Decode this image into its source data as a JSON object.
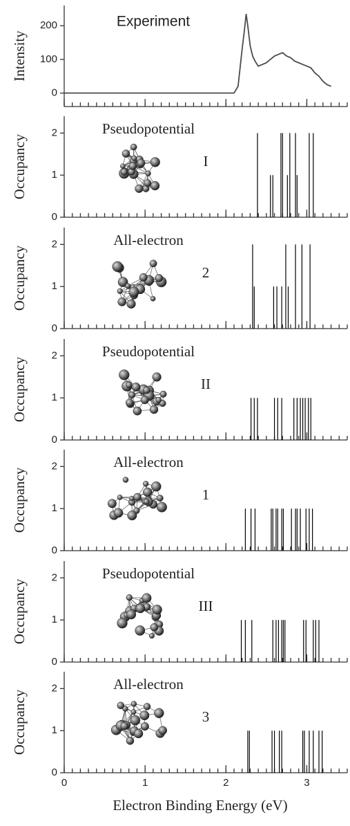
{
  "chart_data": [
    {
      "type": "line",
      "title": "Experiment",
      "ylabel": "Intensity",
      "color": "#4a4a4a",
      "x": [
        0,
        2.1,
        2.15,
        2.2,
        2.23,
        2.25,
        2.27,
        2.3,
        2.33,
        2.36,
        2.4,
        2.45,
        2.5,
        2.55,
        2.6,
        2.65,
        2.7,
        2.75,
        2.8,
        2.85,
        2.9,
        2.95,
        3.0,
        3.05,
        3.1,
        3.15,
        3.2,
        3.25,
        3.3
      ],
      "values": [
        0,
        0,
        20,
        130,
        190,
        235,
        200,
        140,
        110,
        95,
        80,
        85,
        90,
        100,
        110,
        115,
        120,
        110,
        105,
        95,
        90,
        85,
        80,
        75,
        60,
        50,
        35,
        25,
        20
      ],
      "xlim": [
        0,
        3.5
      ],
      "ylim": [
        -40,
        260
      ],
      "yticks": [
        0,
        100,
        200
      ],
      "xticks": [
        0,
        1,
        2,
        3
      ],
      "minor_xtick_step": 0.1
    },
    {
      "type": "stick",
      "title": "Pseudopotential",
      "label": "I",
      "ylabel": "Occupancy",
      "color": "#000000",
      "x": [
        2.39,
        2.55,
        2.58,
        2.68,
        2.7,
        2.76,
        2.79,
        2.86,
        2.88,
        3.03,
        3.08
      ],
      "values": [
        2,
        1,
        1,
        2,
        2,
        1,
        2,
        2,
        1,
        2,
        2
      ],
      "xlim": [
        0,
        3.5
      ],
      "ylim": [
        0,
        2.4
      ],
      "yticks": [
        0,
        1,
        2
      ],
      "xticks": [
        0,
        1,
        2,
        3
      ],
      "minor_xtick_step": 0.1
    },
    {
      "type": "stick",
      "title": "All-electron",
      "label": "2",
      "ylabel": "Occupancy",
      "color": "#000000",
      "x": [
        2.33,
        2.35,
        2.59,
        2.63,
        2.69,
        2.74,
        2.77,
        2.86,
        2.94,
        3.04
      ],
      "values": [
        2,
        1,
        1,
        1,
        1,
        2,
        1,
        2,
        2,
        2
      ],
      "xlim": [
        0,
        3.5
      ],
      "ylim": [
        0,
        2.4
      ],
      "yticks": [
        0,
        1,
        2
      ],
      "xticks": [
        0,
        1,
        2,
        3
      ],
      "minor_xtick_step": 0.1
    },
    {
      "type": "stick",
      "title": "Pseudopotential",
      "label": "II",
      "ylabel": "Occupancy",
      "color": "#000000",
      "x": [
        2.31,
        2.35,
        2.39,
        2.6,
        2.64,
        2.69,
        2.84,
        2.88,
        2.92,
        2.95,
        2.98,
        3.02,
        3.05
      ],
      "values": [
        1,
        1,
        1,
        1,
        1,
        1,
        1,
        1,
        1,
        1,
        1,
        1,
        1
      ],
      "xlim": [
        0,
        3.5
      ],
      "ylim": [
        0,
        2.4
      ],
      "yticks": [
        0,
        1,
        2
      ],
      "xticks": [
        0,
        1,
        2,
        3
      ],
      "minor_xtick_step": 0.1
    },
    {
      "type": "stick",
      "title": "All-electron",
      "label": "1",
      "ylabel": "Occupancy",
      "color": "#000000",
      "x": [
        2.24,
        2.31,
        2.36,
        2.56,
        2.58,
        2.62,
        2.64,
        2.69,
        2.71,
        2.81,
        2.86,
        2.88,
        2.92,
        2.99,
        3.03,
        3.07
      ],
      "values": [
        1,
        1,
        1,
        1,
        1,
        1,
        1,
        1,
        1,
        1,
        1,
        1,
        1,
        1,
        1,
        1
      ],
      "xlim": [
        0,
        3.5
      ],
      "ylim": [
        0,
        2.4
      ],
      "yticks": [
        0,
        1,
        2
      ],
      "xticks": [
        0,
        1,
        2,
        3
      ],
      "minor_xtick_step": 0.1
    },
    {
      "type": "stick",
      "title": "Pseudopotential",
      "label": "III",
      "ylabel": "Occupancy",
      "color": "#000000",
      "x": [
        2.19,
        2.24,
        2.32,
        2.58,
        2.62,
        2.65,
        2.69,
        2.71,
        2.73,
        2.96,
        2.99,
        3.08,
        3.11,
        3.15
      ],
      "values": [
        1,
        1,
        1,
        1,
        1,
        1,
        1,
        1,
        1,
        1,
        1,
        1,
        1,
        1
      ],
      "xlim": [
        0,
        3.5
      ],
      "ylim": [
        0,
        2.4
      ],
      "yticks": [
        0,
        1,
        2
      ],
      "xticks": [
        0,
        1,
        2,
        3
      ],
      "minor_xtick_step": 0.1
    },
    {
      "type": "stick",
      "title": "All-electron",
      "label": "3",
      "ylabel": "Occupancy",
      "color": "#000000",
      "x": [
        2.27,
        2.29,
        2.57,
        2.6,
        2.66,
        2.69,
        2.95,
        2.97,
        3.03,
        3.08,
        3.15,
        3.19
      ],
      "values": [
        1,
        1,
        1,
        1,
        1,
        1,
        1,
        1,
        1,
        1,
        1,
        1
      ],
      "xlim": [
        0,
        3.5
      ],
      "ylim": [
        0,
        2.4
      ],
      "yticks": [
        0,
        1,
        2
      ],
      "xticks": [
        0,
        1,
        2,
        3
      ],
      "minor_xtick_step": 0.1,
      "show_xtick_labels": true,
      "xlabel": "Electron Binding Energy (eV)"
    }
  ]
}
